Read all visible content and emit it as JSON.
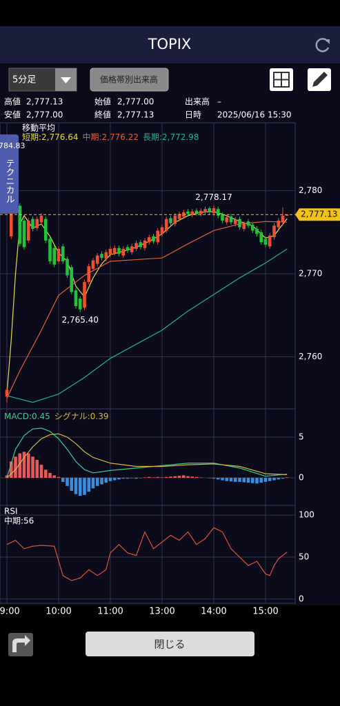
{
  "header": {
    "title": "TOPIX"
  },
  "controls": {
    "interval": "5分足",
    "volume_profile": "価格帯別出来高",
    "tab": "テクニカル",
    "clipped_label": "784.83"
  },
  "info": {
    "rows": [
      [
        {
          "label": "高値",
          "value": "2,777.13"
        },
        {
          "label": "始値",
          "value": "2,777.00"
        },
        {
          "label": "出来高",
          "value": "–"
        }
      ],
      [
        {
          "label": "安値",
          "value": "2,777.00"
        },
        {
          "label": "終値",
          "value": "2,777.13"
        },
        {
          "label": "日時",
          "value": "2025/06/16 15:30"
        }
      ]
    ]
  },
  "footer": {
    "close": "閉じる"
  },
  "chart_data": [
    {
      "type": "candlestick",
      "legend_title": "移動平均",
      "up_color": "#f0502e",
      "down_color": "#22c23a",
      "categories": [
        "09:00",
        null,
        null,
        null,
        null,
        null,
        null,
        null,
        null,
        null,
        null,
        null,
        "10:00",
        null,
        null,
        null,
        null,
        null,
        null,
        null,
        null,
        null,
        null,
        null,
        "11:00",
        null,
        null,
        null,
        null,
        null,
        null,
        null,
        null,
        null,
        null,
        null,
        "13:00",
        null,
        null,
        null,
        null,
        null,
        null,
        null,
        null,
        null,
        null,
        null,
        "14:00",
        null,
        null,
        null,
        null,
        null,
        null,
        null,
        null,
        null,
        null,
        null,
        "15:00",
        null,
        null,
        null,
        null,
        null
      ],
      "open": [
        2755.2,
        2774.5,
        2783.9,
        2778.2,
        2776.4,
        2774.0,
        2776.6,
        2775.5,
        2776.2,
        2776.6,
        2774.2,
        2773.1,
        2771.5,
        2773.3,
        2771.8,
        2770.8,
        2768.0,
        2767.0,
        2765.9,
        2769.0,
        2770.6,
        2771.2,
        2772.4,
        2771.8,
        2772.3,
        2772.5,
        2773.1,
        2772.2,
        2773.2,
        2772.6,
        2773.0,
        2773.8,
        2773.1,
        2773.8,
        2774.5,
        2773.8,
        2774.8,
        2775.2,
        2776.7,
        2776.0,
        2776.6,
        2776.9,
        2777.5,
        2777.1,
        2777.6,
        2777.2,
        2777.4,
        2777.9,
        2777.3,
        2777.8,
        2777.1,
        2776.2,
        2776.9,
        2776.0,
        2776.6,
        2775.4,
        2776.3,
        2775.9,
        2775.4,
        2775.0,
        2774.2,
        2773.3,
        2774.4,
        2775.6,
        2776.2,
        2777.0
      ],
      "high": [
        2756.3,
        2784.83,
        2784.2,
        2778.5,
        2776.7,
        2776.7,
        2776.9,
        2776.9,
        2777.3,
        2776.9,
        2774.5,
        2773.4,
        2773.3,
        2773.6,
        2772.1,
        2771.1,
        2768.3,
        2767.3,
        2769.3,
        2771.2,
        2771.9,
        2772.5,
        2772.7,
        2772.9,
        2773.3,
        2773.4,
        2773.4,
        2773.3,
        2773.5,
        2773.6,
        2774.0,
        2774.1,
        2774.3,
        2774.7,
        2774.8,
        2775.5,
        2775.9,
        2776.9,
        2777.0,
        2777.3,
        2777.5,
        2777.7,
        2777.8,
        2777.8,
        2777.9,
        2777.9,
        2778.1,
        2778.1,
        2778.17,
        2778.1,
        2777.4,
        2777.1,
        2777.2,
        2776.8,
        2776.9,
        2776.3,
        2776.6,
        2776.2,
        2775.7,
        2775.3,
        2774.5,
        2774.9,
        2776.1,
        2776.7,
        2778.0,
        2777.13
      ],
      "low": [
        2754.5,
        2774.2,
        2777.9,
        2773.3,
        2772.9,
        2773.7,
        2775.1,
        2775.2,
        2775.9,
        2773.7,
        2771.2,
        2770.8,
        2771.2,
        2771.2,
        2769.5,
        2767.5,
        2765.8,
        2765.4,
        2765.6,
        2768.7,
        2770.3,
        2770.9,
        2771.6,
        2771.5,
        2772.0,
        2772.2,
        2772.1,
        2771.9,
        2772.5,
        2772.3,
        2772.7,
        2772.9,
        2772.8,
        2773.5,
        2773.6,
        2773.5,
        2774.5,
        2774.9,
        2775.8,
        2775.7,
        2776.3,
        2776.6,
        2776.9,
        2776.8,
        2777.0,
        2776.9,
        2777.1,
        2777.1,
        2777.0,
        2776.7,
        2776.1,
        2775.9,
        2775.9,
        2775.7,
        2775.3,
        2775.1,
        2775.5,
        2774.9,
        2774.5,
        2773.5,
        2773.2,
        2773.0,
        2774.1,
        2775.3,
        2775.9,
        2777.0
      ],
      "close": [
        2756.0,
        2779.0,
        2778.2,
        2773.6,
        2773.2,
        2776.4,
        2775.4,
        2776.6,
        2777.0,
        2774.0,
        2771.5,
        2771.1,
        2773.0,
        2771.5,
        2769.8,
        2767.8,
        2766.1,
        2765.7,
        2769.0,
        2770.9,
        2771.6,
        2772.2,
        2771.9,
        2772.6,
        2773.0,
        2773.1,
        2772.4,
        2773.0,
        2772.8,
        2773.3,
        2773.7,
        2773.2,
        2774.0,
        2774.4,
        2773.9,
        2775.2,
        2775.6,
        2776.6,
        2776.1,
        2777.0,
        2777.2,
        2777.4,
        2777.2,
        2777.5,
        2777.3,
        2777.6,
        2777.8,
        2777.4,
        2777.9,
        2777.0,
        2776.4,
        2776.8,
        2776.2,
        2776.5,
        2775.6,
        2776.0,
        2775.8,
        2775.2,
        2774.8,
        2773.8,
        2773.5,
        2774.6,
        2775.8,
        2776.4,
        2777.0,
        2777.13
      ],
      "series": [
        {
          "name": "短期:2,776.64",
          "color": "#e6dc48",
          "x": [
            0,
            1,
            2,
            3,
            4,
            6,
            8,
            10,
            12,
            14,
            16,
            18,
            20,
            22,
            24,
            27,
            30,
            33,
            36,
            39,
            42,
            45,
            48,
            51,
            54,
            57,
            60,
            62,
            65
          ],
          "values": [
            2755.5,
            2762,
            2770,
            2776,
            2777,
            2775.5,
            2776,
            2774.5,
            2772.5,
            2771.5,
            2768.5,
            2767.2,
            2769.5,
            2771.2,
            2772.3,
            2772.7,
            2773.2,
            2773.9,
            2774.8,
            2776.2,
            2777.0,
            2777.4,
            2777.5,
            2777.0,
            2776.3,
            2775.8,
            2774.3,
            2774.6,
            2776.64
          ]
        },
        {
          "name": "中期:2,776.22",
          "color": "#e0603a",
          "x": [
            0,
            3,
            8,
            12,
            18,
            24,
            30,
            36,
            42,
            48,
            54,
            60,
            65
          ],
          "values": [
            2755,
            2758.3,
            2763.2,
            2767.4,
            2769.8,
            2771.5,
            2771.7,
            2771.9,
            2773.6,
            2775.2,
            2776.0,
            2776.3,
            2776.22
          ]
        },
        {
          "name": "長期:2,772.98",
          "color": "#20b48e",
          "x": [
            0,
            6,
            12,
            18,
            24,
            30,
            36,
            42,
            48,
            54,
            60,
            65
          ],
          "values": [
            2755.3,
            2754.5,
            2755.5,
            2757.5,
            2759.8,
            2761.5,
            2763.2,
            2765.5,
            2767.5,
            2769.5,
            2771.3,
            2772.98
          ]
        }
      ],
      "annotations": [
        {
          "value": 2778.17,
          "label": "2,778.17"
        },
        {
          "value": 2765.4,
          "label": "2,765.40"
        }
      ],
      "last": {
        "value": 2777.13,
        "label": "2,777.13"
      },
      "last_color": "#f2c21a",
      "ylim": [
        2753.8,
        2788.2
      ],
      "yticks": [
        {
          "value": 2760,
          "label": "2,760"
        },
        {
          "value": 2770,
          "label": "2,770"
        },
        {
          "value": 2780,
          "label": "2,780"
        }
      ],
      "grid": true
    },
    {
      "type": "macd",
      "hist_up_color": "#e85a5a",
      "hist_down_color": "#3a8ee0",
      "histogram": [
        0.3,
        2.0,
        2.6,
        3.0,
        3.2,
        3.0,
        2.6,
        2.2,
        1.6,
        1.0,
        0.6,
        0.3,
        0.1,
        -0.5,
        -1.0,
        -1.6,
        -2.0,
        -2.2,
        -2.1,
        -1.7,
        -1.3,
        -1.0,
        -0.8,
        -0.6,
        -0.4,
        -0.3,
        -0.2,
        -0.1,
        -0.1,
        -0.05,
        -0.1,
        -0.05,
        0.05,
        0.1,
        0.05,
        0.1,
        0.05,
        0.1,
        0.15,
        0.2,
        0.25,
        0.3,
        0.2,
        0.15,
        0.1,
        0.05,
        0,
        -0.05,
        -0.1,
        -0.2,
        -0.3,
        -0.4,
        -0.45,
        -0.5,
        -0.5,
        -0.55,
        -0.6,
        -0.65,
        -0.7,
        -0.6,
        -0.5,
        -0.4,
        -0.3,
        -0.2,
        -0.1,
        0.06
      ],
      "series": [
        {
          "name": "MACD:0.45",
          "color": "#3ccf8f",
          "x": [
            0,
            2,
            4,
            6,
            8,
            10,
            12,
            14,
            16,
            18,
            20,
            24,
            30,
            36,
            42,
            48,
            54,
            60,
            65
          ],
          "values": [
            0,
            3.5,
            5.2,
            6.0,
            6.1,
            5.7,
            4.8,
            3.5,
            2.0,
            1.0,
            0.6,
            0.9,
            1.2,
            1.5,
            1.8,
            1.8,
            1.2,
            0.2,
            0.45
          ]
        },
        {
          "name": "シグナル:0.39",
          "color": "#d8b840",
          "x": [
            0,
            2,
            4,
            6,
            8,
            10,
            12,
            14,
            16,
            18,
            20,
            24,
            30,
            36,
            42,
            48,
            54,
            60,
            65
          ],
          "values": [
            0,
            1.0,
            2.5,
            3.8,
            4.8,
            5.3,
            5.4,
            5.0,
            4.2,
            3.2,
            2.5,
            1.8,
            1.4,
            1.4,
            1.6,
            1.7,
            1.4,
            0.5,
            0.39
          ]
        }
      ],
      "ylim": [
        -3.3,
        8.3
      ],
      "yticks": [
        0,
        5
      ],
      "grid": true
    },
    {
      "type": "rsi",
      "title": "RSI",
      "series": [
        {
          "name": "中期:56",
          "color": "#e0503a",
          "x": [
            0,
            2,
            4,
            6,
            8,
            11,
            13,
            15,
            17,
            19,
            21,
            23,
            24,
            26,
            28,
            30,
            32,
            34,
            36,
            38,
            40,
            42,
            44,
            46,
            48,
            50,
            52,
            54,
            56,
            58,
            60,
            61,
            62,
            63,
            64,
            65
          ],
          "values": [
            65,
            70,
            60,
            63,
            64,
            63,
            28,
            22,
            25,
            35,
            28,
            35,
            55,
            65,
            55,
            52,
            80,
            60,
            68,
            76,
            70,
            80,
            65,
            72,
            85,
            80,
            60,
            50,
            40,
            45,
            30,
            28,
            40,
            48,
            52,
            56
          ]
        }
      ],
      "ylim": [
        -5,
        110
      ],
      "yticks": [
        0,
        50,
        100
      ],
      "grid": true
    }
  ]
}
